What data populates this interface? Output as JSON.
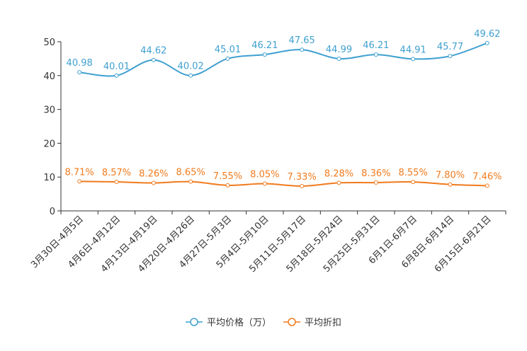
{
  "chart_data": {
    "type": "line",
    "categories": [
      "3月30日-4月5日",
      "4月6日-4月12日",
      "4月13日-4月19日",
      "4月20日-4月26日",
      "4月27日-5月3日",
      "5月4日-5月10日",
      "5月11日-5月17日",
      "5月18日-5月24日",
      "5月25日-5月31日",
      "6月1日-6月7日",
      "6月8日-6月14日",
      "6月15日-6月21日"
    ],
    "ylim": [
      0,
      50
    ],
    "yticks": [
      "0",
      "10",
      "20",
      "30",
      "40",
      "50"
    ],
    "series": [
      {
        "name": "平均价格（万）",
        "color": "#3fa0d0",
        "values": [
          40.98,
          40.01,
          44.62,
          40.02,
          45.01,
          46.21,
          47.65,
          44.99,
          46.21,
          44.91,
          45.77,
          49.62
        ],
        "labels": [
          "40.98",
          "40.01",
          "44.62",
          "40.02",
          "45.01",
          "46.21",
          "47.65",
          "44.99",
          "46.21",
          "44.91",
          "45.77",
          "49.62"
        ]
      },
      {
        "name": "平均折扣",
        "color": "#f07b1e",
        "values": [
          8.71,
          8.57,
          8.26,
          8.65,
          7.55,
          8.05,
          7.33,
          8.28,
          8.36,
          8.55,
          7.8,
          7.46
        ],
        "labels": [
          "8.71%",
          "8.57%",
          "8.26%",
          "8.65%",
          "7.55%",
          "8.05%",
          "7.33%",
          "8.28%",
          "8.36%",
          "8.55%",
          "7.80%",
          "7.46%"
        ]
      }
    ]
  }
}
